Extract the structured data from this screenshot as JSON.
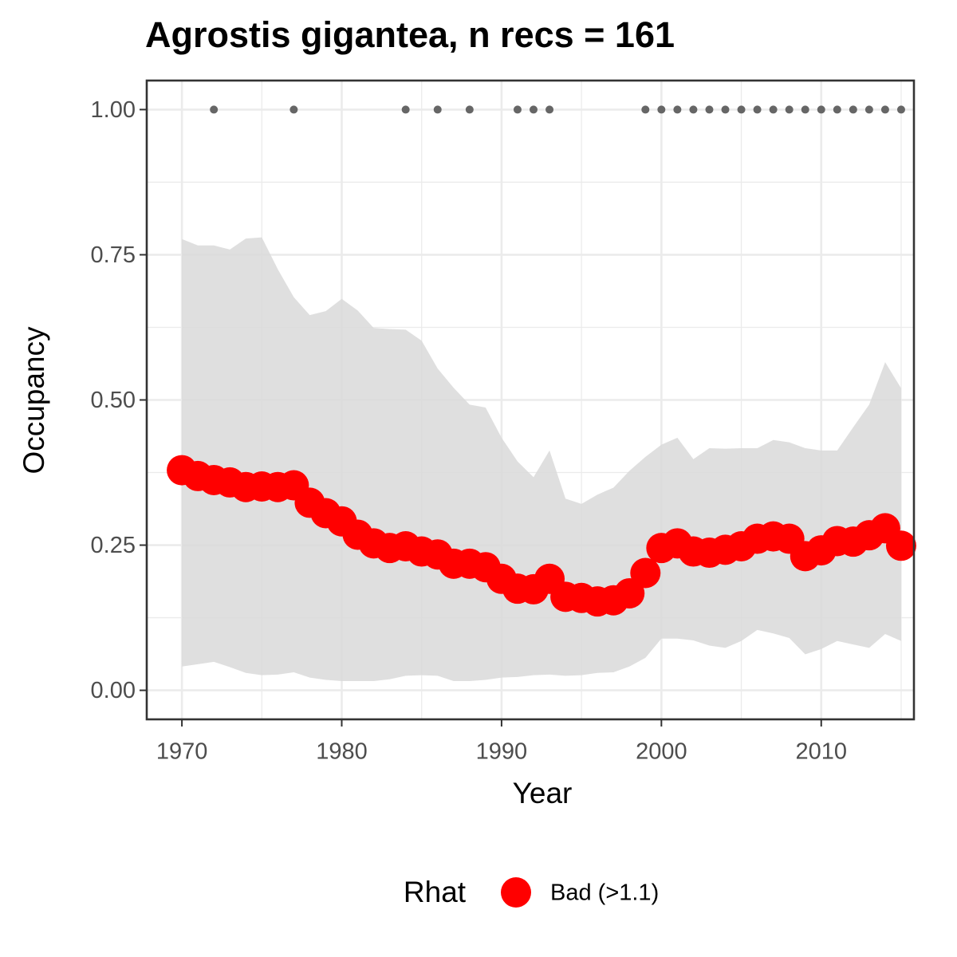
{
  "chart_data": {
    "type": "ribbon-points",
    "title": "Agrostis gigantea, n recs = 161",
    "x_label": "Year",
    "y_label": "Occupancy",
    "legend_title": "Rhat",
    "legend_label": "Bad (>1.1)",
    "color": "#ff0000",
    "ribbon_color": "#d9d9d9",
    "record_color": "#666666",
    "x": [
      1970,
      1971,
      1972,
      1973,
      1974,
      1975,
      1976,
      1977,
      1978,
      1979,
      1980,
      1981,
      1982,
      1983,
      1984,
      1985,
      1986,
      1987,
      1988,
      1989,
      1990,
      1991,
      1992,
      1993,
      1994,
      1995,
      1996,
      1997,
      1998,
      1999,
      2000,
      2001,
      2002,
      2003,
      2004,
      2005,
      2006,
      2007,
      2008,
      2009,
      2010,
      2011,
      2012,
      2013,
      2014,
      2015
    ],
    "values": [
      0.379,
      0.369,
      0.362,
      0.358,
      0.35,
      0.351,
      0.35,
      0.353,
      0.323,
      0.305,
      0.291,
      0.268,
      0.253,
      0.245,
      0.248,
      0.239,
      0.234,
      0.218,
      0.218,
      0.212,
      0.192,
      0.175,
      0.174,
      0.192,
      0.161,
      0.159,
      0.153,
      0.155,
      0.167,
      0.202,
      0.245,
      0.253,
      0.239,
      0.237,
      0.242,
      0.248,
      0.261,
      0.265,
      0.261,
      0.231,
      0.241,
      0.257,
      0.256,
      0.267,
      0.279,
      0.249
    ],
    "upper": [
      0.777,
      0.766,
      0.766,
      0.759,
      0.778,
      0.78,
      0.725,
      0.677,
      0.646,
      0.653,
      0.674,
      0.654,
      0.624,
      0.622,
      0.621,
      0.602,
      0.554,
      0.521,
      0.492,
      0.487,
      0.435,
      0.394,
      0.367,
      0.413,
      0.33,
      0.321,
      0.337,
      0.349,
      0.378,
      0.402,
      0.423,
      0.435,
      0.398,
      0.417,
      0.416,
      0.417,
      0.417,
      0.431,
      0.427,
      0.417,
      0.413,
      0.413,
      0.453,
      0.492,
      0.565,
      0.52
    ],
    "lower": [
      0.041,
      0.045,
      0.049,
      0.04,
      0.03,
      0.026,
      0.027,
      0.031,
      0.022,
      0.018,
      0.016,
      0.016,
      0.016,
      0.019,
      0.025,
      0.026,
      0.025,
      0.016,
      0.016,
      0.018,
      0.022,
      0.023,
      0.026,
      0.027,
      0.025,
      0.026,
      0.03,
      0.031,
      0.041,
      0.056,
      0.089,
      0.089,
      0.086,
      0.077,
      0.073,
      0.085,
      0.104,
      0.098,
      0.09,
      0.062,
      0.071,
      0.085,
      0.079,
      0.073,
      0.097,
      0.085
    ],
    "records": {
      "x": [
        1972,
        1977,
        1984,
        1986,
        1988,
        1991,
        1992,
        1993,
        1999,
        2000,
        2001,
        2002,
        2003,
        2004,
        2005,
        2006,
        2007,
        2008,
        2009,
        2010,
        2011,
        2012,
        2013,
        2014,
        2015
      ],
      "values": [
        1,
        1,
        1,
        1,
        1,
        1,
        1,
        1,
        1,
        1,
        1,
        1,
        1,
        1,
        1,
        1,
        1,
        1,
        1,
        1,
        1,
        1,
        1,
        1,
        1
      ]
    },
    "xlim": [
      1967.8,
      2015.8
    ],
    "ylim": [
      -0.05,
      1.05
    ],
    "xticks": [
      1970,
      1980,
      1990,
      2000,
      2010
    ],
    "yticks": [
      {
        "value": 0,
        "label": "0.00"
      },
      {
        "value": 0.25,
        "label": "0.25"
      },
      {
        "value": 0.5,
        "label": "0.50"
      },
      {
        "value": 0.75,
        "label": "0.75"
      },
      {
        "value": 1,
        "label": "1.00"
      }
    ],
    "x_minor_grid": [
      1975,
      1985,
      1995,
      2005,
      2015
    ],
    "y_minor_grid": [
      0.125,
      0.375,
      0.625,
      0.875
    ]
  }
}
